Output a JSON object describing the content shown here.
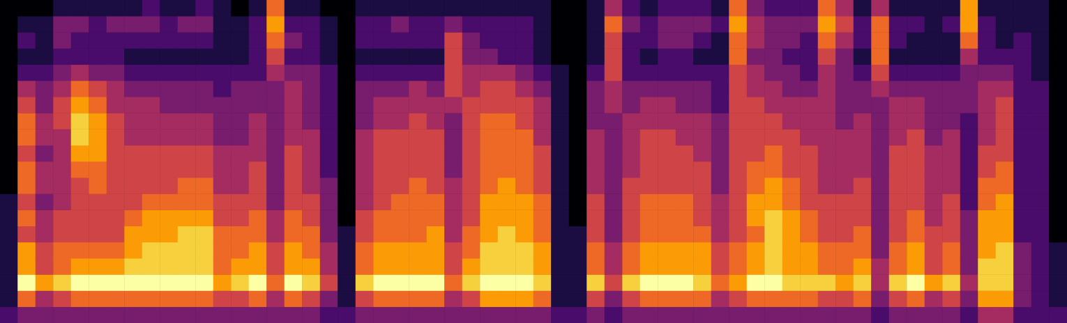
{
  "chart_data": {
    "type": "heatmap",
    "tick_labels": false,
    "grid": false,
    "zlim": [
      0,
      9
    ],
    "cells": [
      [
        2,
        1,
        1,
        1,
        1,
        1,
        1,
        1,
        0,
        0,
        0,
        0,
        0,
        0,
        0,
        0,
        0,
        0,
        0,
        0
      ],
      [
        3,
        6,
        9,
        7,
        7,
        5,
        6,
        5,
        6,
        6,
        5,
        6,
        6,
        5,
        4,
        2,
        1,
        2,
        1,
        0
      ],
      [
        3,
        4,
        7,
        5,
        5,
        4,
        4,
        3,
        4,
        4,
        3,
        4,
        4,
        3,
        3,
        2,
        1,
        1,
        1,
        0
      ],
      [
        3,
        5,
        8,
        6,
        6,
        5,
        5,
        4,
        4,
        4,
        4,
        4,
        5,
        5,
        4,
        3,
        2,
        3,
        3,
        1
      ],
      [
        3,
        6,
        9,
        7,
        6,
        5,
        5,
        5,
        5,
        6,
        7,
        8,
        8,
        7,
        6,
        4,
        2,
        2,
        3,
        1
      ],
      [
        3,
        6,
        9,
        7,
        6,
        5,
        5,
        5,
        6,
        6,
        7,
        7,
        7,
        6,
        5,
        3,
        2,
        2,
        2,
        1
      ],
      [
        3,
        6,
        9,
        7,
        6,
        5,
        5,
        5,
        5,
        5,
        5,
        5,
        5,
        4,
        4,
        3,
        2,
        2,
        3,
        1
      ],
      [
        3,
        6,
        9,
        8,
        7,
        7,
        6,
        5,
        5,
        5,
        5,
        4,
        4,
        4,
        3,
        2,
        1,
        2,
        3,
        1
      ],
      [
        3,
        6,
        9,
        8,
        8,
        7,
        7,
        6,
        5,
        5,
        5,
        4,
        4,
        4,
        3,
        2,
        1,
        2,
        3,
        2
      ],
      [
        3,
        6,
        9,
        8,
        8,
        7,
        7,
        6,
        5,
        5,
        5,
        4,
        4,
        3,
        3,
        2,
        1,
        2,
        2,
        1
      ],
      [
        3,
        6,
        9,
        8,
        8,
        8,
        7,
        6,
        6,
        5,
        5,
        4,
        4,
        3,
        3,
        2,
        1,
        2,
        3,
        1
      ],
      [
        3,
        6,
        9,
        8,
        8,
        8,
        7,
        6,
        6,
        5,
        5,
        4,
        4,
        3,
        3,
        2,
        1,
        2,
        3,
        2
      ],
      [
        3,
        5,
        7,
        6,
        6,
        6,
        5,
        5,
        4,
        4,
        4,
        3,
        3,
        3,
        2,
        2,
        1,
        1,
        1,
        1
      ],
      [
        3,
        5,
        8,
        7,
        6,
        6,
        5,
        5,
        4,
        4,
        4,
        3,
        3,
        3,
        3,
        2,
        1,
        1,
        1,
        0
      ],
      [
        3,
        6,
        9,
        7,
        7,
        6,
        6,
        5,
        5,
        5,
        4,
        4,
        4,
        3,
        3,
        2,
        2,
        2,
        2,
        1
      ],
      [
        3,
        4,
        6,
        5,
        5,
        4,
        4,
        3,
        3,
        3,
        3,
        3,
        3,
        3,
        3,
        4,
        5,
        6,
        7,
        6
      ],
      [
        3,
        6,
        9,
        7,
        7,
        6,
        6,
        5,
        5,
        5,
        5,
        4,
        4,
        4,
        4,
        3,
        2,
        3,
        2,
        1
      ],
      [
        3,
        5,
        8,
        7,
        6,
        6,
        5,
        5,
        4,
        4,
        4,
        4,
        3,
        3,
        3,
        3,
        2,
        2,
        2,
        1
      ],
      [
        2,
        3,
        5,
        4,
        4,
        3,
        3,
        3,
        3,
        2,
        2,
        2,
        2,
        2,
        2,
        2,
        1,
        1,
        1,
        0
      ],
      [
        2,
        1,
        1,
        1,
        1,
        1,
        0,
        0,
        0,
        0,
        0,
        0,
        0,
        0,
        0,
        0,
        0,
        0,
        0,
        0
      ],
      [
        3,
        5,
        8,
        6,
        6,
        5,
        5,
        4,
        4,
        4,
        4,
        4,
        3,
        3,
        3,
        2,
        1,
        2,
        2,
        1
      ],
      [
        3,
        6,
        9,
        7,
        7,
        6,
        6,
        5,
        5,
        5,
        5,
        5,
        4,
        4,
        3,
        2,
        1,
        2,
        2,
        1
      ],
      [
        3,
        6,
        9,
        7,
        7,
        6,
        6,
        6,
        5,
        5,
        5,
        5,
        4,
        4,
        3,
        2,
        1,
        2,
        3,
        1
      ],
      [
        3,
        6,
        9,
        7,
        7,
        6,
        6,
        6,
        6,
        5,
        5,
        5,
        5,
        4,
        4,
        2,
        1,
        2,
        2,
        1
      ],
      [
        3,
        6,
        9,
        7,
        7,
        7,
        6,
        6,
        5,
        5,
        5,
        5,
        4,
        4,
        3,
        2,
        1,
        2,
        2,
        1
      ],
      [
        3,
        4,
        6,
        5,
        5,
        4,
        4,
        4,
        4,
        3,
        3,
        3,
        3,
        4,
        5,
        5,
        5,
        5,
        3,
        1
      ],
      [
        3,
        5,
        8,
        7,
        6,
        6,
        5,
        5,
        5,
        5,
        5,
        5,
        5,
        5,
        4,
        4,
        3,
        3,
        2,
        1
      ],
      [
        3,
        7,
        9,
        8,
        8,
        7,
        7,
        7,
        6,
        6,
        6,
        6,
        6,
        5,
        5,
        4,
        3,
        2,
        2,
        1
      ],
      [
        3,
        7,
        9,
        8,
        8,
        8,
        7,
        7,
        7,
        6,
        6,
        6,
        6,
        5,
        5,
        4,
        2,
        2,
        2,
        1
      ],
      [
        3,
        7,
        9,
        8,
        8,
        7,
        7,
        7,
        6,
        6,
        6,
        6,
        5,
        5,
        4,
        3,
        2,
        2,
        2,
        1
      ],
      [
        3,
        6,
        8,
        7,
        7,
        6,
        6,
        6,
        5,
        5,
        5,
        4,
        4,
        4,
        3,
        2,
        1,
        1,
        1,
        1
      ],
      [
        2,
        1,
        1,
        1,
        1,
        1,
        1,
        1,
        1,
        1,
        1,
        1,
        1,
        1,
        1,
        1,
        0,
        0,
        0,
        0
      ],
      [
        2,
        1,
        1,
        1,
        1,
        1,
        0,
        0,
        0,
        0,
        0,
        0,
        0,
        0,
        0,
        0,
        0,
        0,
        0,
        0
      ],
      [
        3,
        5,
        8,
        6,
        6,
        5,
        5,
        5,
        4,
        4,
        4,
        4,
        3,
        3,
        3,
        2,
        1,
        1,
        1,
        1
      ],
      [
        2,
        3,
        5,
        4,
        4,
        3,
        3,
        3,
        3,
        3,
        3,
        3,
        3,
        4,
        4,
        5,
        5,
        5,
        6,
        4
      ],
      [
        3,
        5,
        8,
        6,
        6,
        5,
        5,
        5,
        5,
        4,
        4,
        4,
        4,
        3,
        3,
        2,
        2,
        2,
        3,
        2
      ],
      [
        3,
        6,
        9,
        7,
        7,
        6,
        6,
        6,
        5,
        5,
        5,
        5,
        4,
        4,
        3,
        2,
        1,
        2,
        2,
        1
      ],
      [
        3,
        6,
        9,
        7,
        7,
        6,
        6,
        6,
        5,
        5,
        5,
        5,
        4,
        4,
        3,
        2,
        2,
        3,
        3,
        2
      ],
      [
        3,
        6,
        9,
        7,
        7,
        6,
        6,
        6,
        5,
        5,
        5,
        4,
        4,
        3,
        3,
        2,
        2,
        3,
        3,
        2
      ],
      [
        3,
        6,
        8,
        7,
        7,
        6,
        5,
        5,
        5,
        5,
        4,
        4,
        4,
        3,
        3,
        2,
        1,
        2,
        3,
        2
      ],
      [
        3,
        4,
        6,
        5,
        5,
        4,
        4,
        4,
        3,
        3,
        3,
        3,
        3,
        2,
        2,
        2,
        1,
        1,
        2,
        1
      ],
      [
        3,
        5,
        7,
        6,
        6,
        5,
        5,
        5,
        5,
        5,
        5,
        5,
        5,
        5,
        5,
        5,
        6,
        6,
        7,
        6
      ],
      [
        3,
        6,
        9,
        7,
        7,
        6,
        7,
        7,
        6,
        6,
        5,
        5,
        5,
        5,
        4,
        4,
        3,
        4,
        4,
        3
      ],
      [
        3,
        6,
        9,
        8,
        8,
        8,
        8,
        7,
        7,
        6,
        6,
        5,
        5,
        4,
        4,
        3,
        3,
        3,
        3,
        2
      ],
      [
        3,
        6,
        8,
        7,
        7,
        7,
        7,
        6,
        6,
        5,
        5,
        5,
        4,
        4,
        3,
        3,
        2,
        3,
        3,
        2
      ],
      [
        3,
        6,
        8,
        7,
        7,
        6,
        6,
        5,
        5,
        5,
        5,
        4,
        4,
        4,
        3,
        2,
        2,
        2,
        3,
        2
      ],
      [
        3,
        5,
        8,
        6,
        6,
        5,
        5,
        5,
        4,
        4,
        4,
        4,
        4,
        4,
        4,
        4,
        5,
        6,
        7,
        6
      ],
      [
        3,
        5,
        7,
        6,
        6,
        5,
        5,
        5,
        4,
        4,
        4,
        4,
        3,
        3,
        3,
        3,
        3,
        4,
        5,
        4
      ],
      [
        3,
        6,
        8,
        7,
        6,
        6,
        5,
        5,
        5,
        4,
        4,
        4,
        4,
        3,
        3,
        2,
        1,
        2,
        2,
        1
      ],
      [
        2,
        3,
        4,
        4,
        3,
        3,
        3,
        3,
        3,
        3,
        3,
        3,
        3,
        3,
        4,
        5,
        6,
        6,
        6,
        4
      ],
      [
        3,
        5,
        8,
        6,
        6,
        5,
        5,
        5,
        5,
        5,
        5,
        4,
        4,
        4,
        3,
        2,
        1,
        2,
        2,
        1
      ],
      [
        3,
        6,
        9,
        7,
        7,
        6,
        6,
        5,
        5,
        5,
        5,
        5,
        4,
        4,
        3,
        2,
        1,
        1,
        2,
        1
      ],
      [
        3,
        4,
        7,
        5,
        5,
        5,
        4,
        4,
        4,
        4,
        4,
        3,
        3,
        3,
        3,
        2,
        1,
        1,
        1,
        1
      ],
      [
        3,
        5,
        8,
        6,
        6,
        5,
        5,
        5,
        4,
        4,
        4,
        4,
        3,
        3,
        3,
        2,
        1,
        1,
        2,
        1
      ],
      [
        2,
        3,
        4,
        3,
        3,
        3,
        3,
        2,
        2,
        2,
        2,
        2,
        2,
        3,
        3,
        3,
        4,
        6,
        7,
        7
      ],
      [
        4,
        7,
        8,
        8,
        7,
        7,
        7,
        6,
        6,
        5,
        5,
        4,
        4,
        4,
        4,
        3,
        2,
        2,
        2,
        1
      ],
      [
        4,
        7,
        8,
        8,
        8,
        7,
        7,
        7,
        6,
        6,
        5,
        5,
        5,
        5,
        4,
        3,
        2,
        1,
        1,
        1
      ],
      [
        2,
        3,
        3,
        3,
        3,
        2,
        2,
        2,
        2,
        2,
        2,
        2,
        2,
        2,
        2,
        2,
        2,
        2,
        1,
        1
      ],
      [
        2,
        2,
        2,
        2,
        2,
        2,
        2,
        2,
        2,
        2,
        2,
        2,
        2,
        2,
        2,
        1,
        1,
        1,
        1,
        1
      ],
      [
        2,
        1,
        1,
        1,
        1,
        0,
        0,
        0,
        0,
        0,
        0,
        0,
        0,
        0,
        0,
        0,
        0,
        0,
        0,
        0
      ]
    ]
  }
}
